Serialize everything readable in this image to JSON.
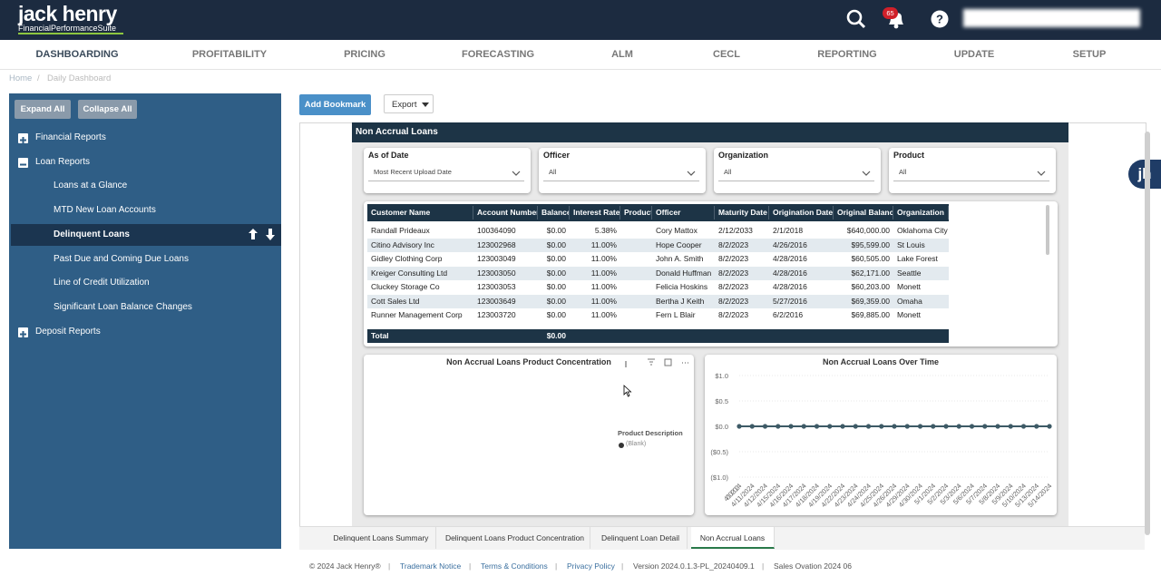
{
  "header": {
    "logo_main": "jack henry",
    "logo_sub": "FinancialPerformanceSuite",
    "notification_count": "65"
  },
  "nav": [
    "DASHBOARDING",
    "PROFITABILITY",
    "PRICING",
    "FORECASTING",
    "ALM",
    "CECL",
    "REPORTING",
    "UPDATE",
    "SETUP"
  ],
  "breadcrumb": {
    "items": [
      "Home",
      "Daily Dashboard"
    ],
    "separator": "/"
  },
  "sidebar": {
    "buttons": [
      "Expand All",
      "Collapse All"
    ],
    "tree": [
      {
        "label": "Financial Reports",
        "expanded": false
      },
      {
        "label": "Loan Reports",
        "expanded": true,
        "children": [
          {
            "label": "Loans at a Glance",
            "active": false
          },
          {
            "label": "MTD New Loan Accounts",
            "active": false
          },
          {
            "label": "Delinquent Loans",
            "active": true
          },
          {
            "label": "Past Due and Coming Due Loans",
            "active": false
          },
          {
            "label": "Line of Credit Utilization",
            "active": false
          },
          {
            "label": "Significant Loan Balance Changes",
            "active": false
          }
        ]
      },
      {
        "label": "Deposit Reports",
        "expanded": false
      }
    ]
  },
  "toolbar": {
    "add_bookmark": "Add Bookmark",
    "export": "Export"
  },
  "assistant_badge": "jh",
  "report": {
    "title": "Non Accrual Loans",
    "filters": [
      {
        "label": "As of Date",
        "value": "Most Recent Upload Date"
      },
      {
        "label": "Officer",
        "value": "All"
      },
      {
        "label": "Organization",
        "value": "All"
      },
      {
        "label": "Product",
        "value": "All"
      }
    ],
    "table": {
      "columns": [
        "Customer Name",
        "Account Number",
        "Balance",
        "Interest Rate",
        "Product",
        "Officer",
        "Maturity Date",
        "Origination Date",
        "Original Balance",
        "Organization"
      ],
      "rows": [
        [
          "Randall Prideaux",
          "100364090",
          "$0.00",
          "5.38%",
          "",
          "Cory Mattox",
          "2/12/2033",
          "2/1/2018",
          "$640,000.00",
          "Oklahoma City"
        ],
        [
          "Citino Advisory Inc",
          "123002968",
          "$0.00",
          "11.00%",
          "",
          "Hope Cooper",
          "8/2/2023",
          "4/26/2016",
          "$95,599.00",
          "St Louis"
        ],
        [
          "Gidley Clothing Corp",
          "123003049",
          "$0.00",
          "11.00%",
          "",
          "John A. Smith",
          "8/2/2023",
          "4/28/2016",
          "$60,505.00",
          "Lake Forest"
        ],
        [
          "Kreiger Consulting Ltd",
          "123003050",
          "$0.00",
          "11.00%",
          "",
          "Donald Huffman",
          "8/2/2023",
          "4/28/2016",
          "$62,171.00",
          "Seattle"
        ],
        [
          "Cluckey Storage Co",
          "123003053",
          "$0.00",
          "11.00%",
          "",
          "Felicia Hoskins",
          "8/2/2023",
          "4/28/2016",
          "$60,203.00",
          "Monett"
        ],
        [
          "Cott Sales Ltd",
          "123003649",
          "$0.00",
          "11.00%",
          "",
          "Bertha J Keith",
          "8/2/2023",
          "5/27/2016",
          "$69,359.00",
          "Omaha"
        ],
        [
          "Runner Management Corp",
          "123003720",
          "$0.00",
          "11.00%",
          "",
          "Fern L Blair",
          "8/2/2023",
          "6/2/2016",
          "$69,885.00",
          "Monett"
        ]
      ],
      "total_label": "Total",
      "total_balance": "$0.00"
    },
    "pie_chart": {
      "title": "Non Accrual Loans Product Concentration",
      "legend_title": "Product Description",
      "legend_items": [
        "(Blank)"
      ]
    },
    "line_chart": {
      "type": "line",
      "title": "Non Accrual Loans Over Time",
      "color": "#3d5a66",
      "categories": [
        "4/10/2024",
        "4/11/2024",
        "4/12/2024",
        "4/15/2024",
        "4/16/2024",
        "4/17/2024",
        "4/18/2024",
        "4/19/2024",
        "4/22/2024",
        "4/23/2024",
        "4/24/2024",
        "4/25/2024",
        "4/26/2024",
        "4/29/2024",
        "4/30/2024",
        "5/1/2024",
        "5/2/2024",
        "5/3/2024",
        "5/6/2024",
        "5/7/2024",
        "5/8/2024",
        "5/9/2024",
        "5/10/2024",
        "5/13/2024",
        "5/14/2024"
      ],
      "values": [
        0,
        0,
        0,
        0,
        0,
        0,
        0,
        0,
        0,
        0,
        0,
        0,
        0,
        0,
        0,
        0,
        0,
        0,
        0,
        0,
        0,
        0,
        0,
        0,
        0
      ],
      "ylim": [
        -1,
        1
      ],
      "yticks": [
        {
          "value": 1,
          "label": "$1.0"
        },
        {
          "value": 0.5,
          "label": "$0.5"
        },
        {
          "value": 0,
          "label": "$0.0"
        },
        {
          "value": -0.5,
          "label": "($0.5)"
        },
        {
          "value": -1,
          "label": "($1.0)"
        }
      ],
      "grid": true
    }
  },
  "tabs": {
    "items": [
      "Delinquent Loans Summary",
      "Delinquent Loans Product Concentration",
      "Delinquent Loan Detail",
      "Non Accrual Loans"
    ],
    "active": 3
  },
  "footer": {
    "items": [
      "© 2024 Jack Henry®",
      "Trademark Notice",
      "Terms & Conditions",
      "Privacy Policy",
      "Version 2024.0.1.3-PL_20240409.1",
      "Sales Ovation 2024 06"
    ],
    "separator": "|"
  }
}
